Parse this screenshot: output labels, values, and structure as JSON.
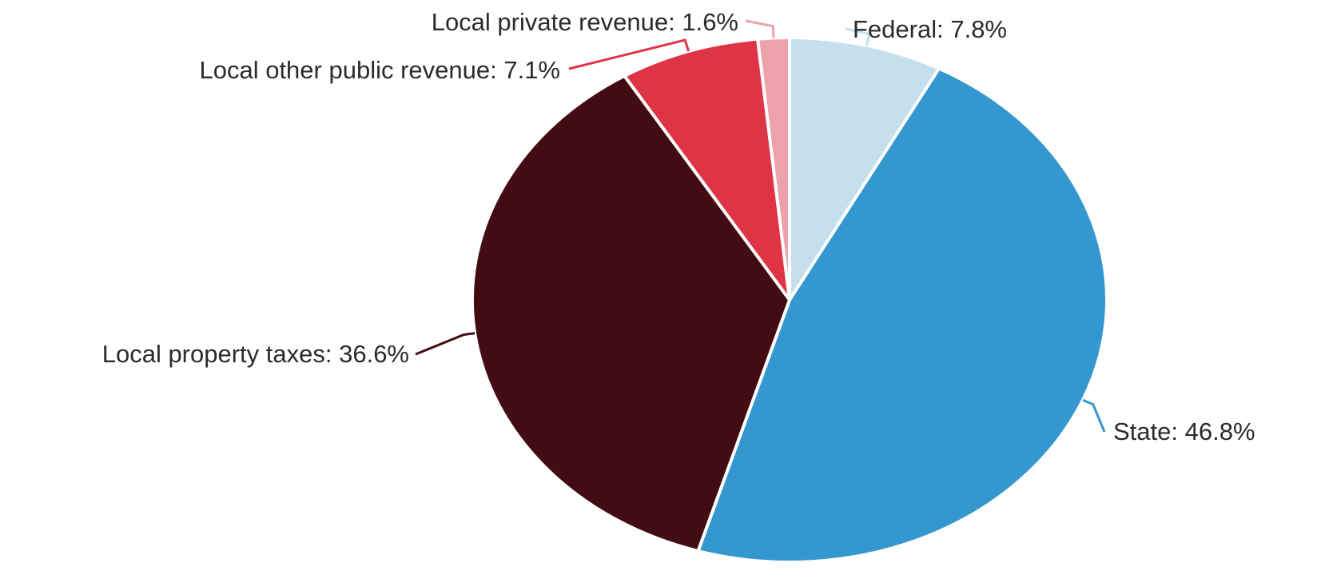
{
  "chart_data": {
    "type": "pie",
    "title": "",
    "start_angle_deg": 0,
    "direction": "clockwise",
    "legend": "none",
    "slices": [
      {
        "label": "Federal",
        "value": 7.8,
        "display": "Federal: 7.8%",
        "color": "#c5dfec"
      },
      {
        "label": "State",
        "value": 46.8,
        "display": "State: 46.8%",
        "color": "#3597cf"
      },
      {
        "label": "Local property taxes",
        "value": 36.6,
        "display": "Local property taxes: 36.6%",
        "color": "#430c12"
      },
      {
        "label": "Local other public revenue",
        "value": 7.1,
        "display": "Local other public revenue: 7.1%",
        "color": "#df3446"
      },
      {
        "label": "Local private revenue",
        "value": 1.6,
        "display": "Local private revenue: 1.6%",
        "color": "#eda2a9"
      }
    ]
  }
}
